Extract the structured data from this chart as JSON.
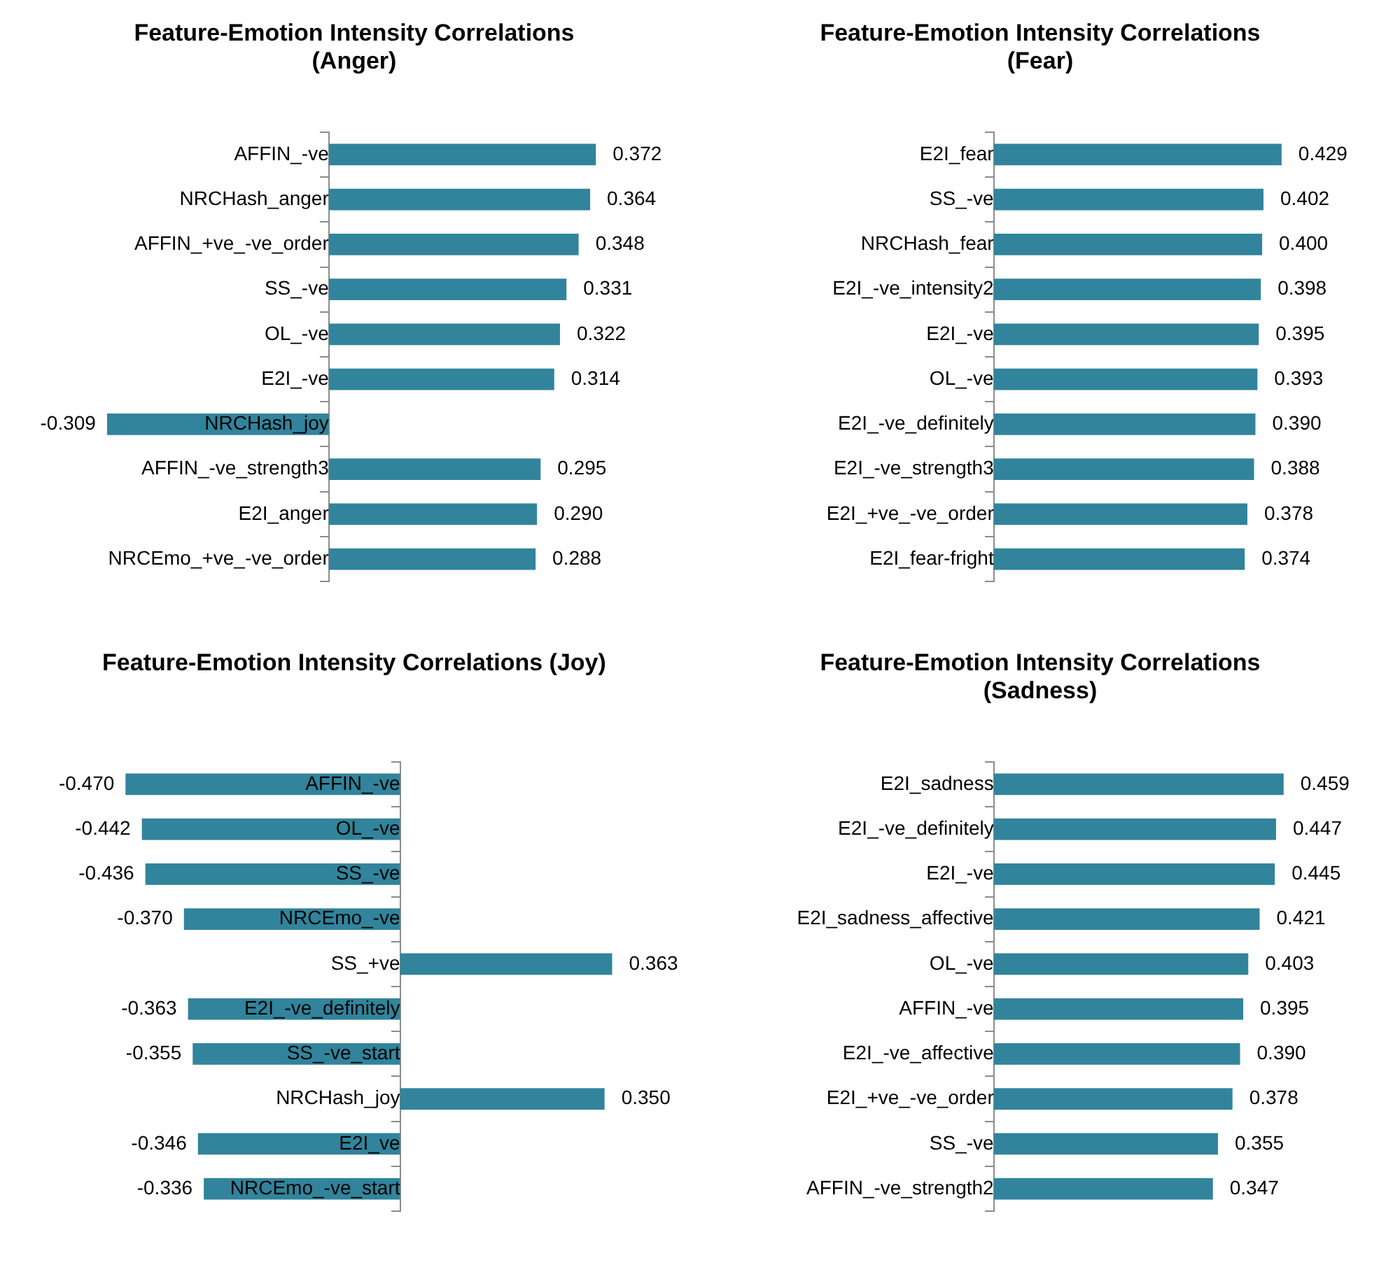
{
  "chart_data": [
    {
      "type": "bar",
      "orientation": "horizontal",
      "tick_labels": "y",
      "title": "Feature-Emotion Intensity Correlations\n(Anger)",
      "color": "#31849b",
      "categories": [
        "AFFIN_-ve",
        "NRCHash_anger",
        "AFFIN_+ve_-ve_order",
        "SS_-ve",
        "OL_-ve",
        "E2I_-ve",
        "NRCHash_joy",
        "AFFIN_-ve_strength3",
        "E2I_anger",
        "NRCEmo_+ve_-ve_order"
      ],
      "values": [
        0.372,
        0.364,
        0.348,
        0.331,
        0.322,
        0.314,
        -0.309,
        0.295,
        0.29,
        0.288
      ],
      "value_labels": [
        "0.372",
        "0.364",
        "0.348",
        "0.331",
        "0.322",
        "0.314",
        "-0.309",
        "0.295",
        "0.290",
        "0.288"
      ]
    },
    {
      "type": "bar",
      "orientation": "horizontal",
      "tick_labels": "y",
      "title": "Feature-Emotion Intensity Correlations\n(Fear)",
      "color": "#31849b",
      "categories": [
        "E2I_fear",
        "SS_-ve",
        "NRCHash_fear",
        "E2I_-ve_intensity2",
        "E2I_-ve",
        "OL_-ve",
        "E2I_-ve_definitely",
        "E2I_-ve_strength3",
        "E2I_+ve_-ve_order",
        "E2I_fear-fright"
      ],
      "values": [
        0.429,
        0.402,
        0.4,
        0.398,
        0.395,
        0.393,
        0.39,
        0.388,
        0.378,
        0.374
      ],
      "value_labels": [
        "0.429",
        "0.402",
        "0.400",
        "0.398",
        "0.395",
        "0.393",
        "0.390",
        "0.388",
        "0.378",
        "0.374"
      ]
    },
    {
      "type": "bar",
      "orientation": "horizontal",
      "tick_labels": "y",
      "title": "Feature-Emotion Intensity Correlations (Joy)",
      "color": "#31849b",
      "categories": [
        "AFFIN_-ve",
        "OL_-ve",
        "SS_-ve",
        "NRCEmo_-ve",
        "SS_+ve",
        "E2I_-ve_definitely",
        "SS_-ve_start",
        "NRCHash_joy",
        "E2I_ve",
        "NRCEmo_-ve_start"
      ],
      "values": [
        -0.47,
        -0.442,
        -0.436,
        -0.37,
        0.363,
        -0.363,
        -0.355,
        0.35,
        -0.346,
        -0.336
      ],
      "value_labels": [
        "-0.470",
        "-0.442",
        "-0.436",
        "-0.370",
        "0.363",
        "-0.363",
        "-0.355",
        "0.350",
        "-0.346",
        "-0.336"
      ]
    },
    {
      "type": "bar",
      "orientation": "horizontal",
      "tick_labels": "y",
      "title": "Feature-Emotion Intensity Correlations\n(Sadness)",
      "color": "#31849b",
      "categories": [
        "E2I_sadness",
        "E2I_-ve_definitely",
        "E2I_-ve",
        "E2I_sadness_affective",
        "OL_-ve",
        "AFFIN_-ve",
        "E2I_-ve_affective",
        "E2I_+ve_-ve_order",
        "SS_-ve",
        "AFFIN_-ve_strength2"
      ],
      "values": [
        0.459,
        0.447,
        0.445,
        0.421,
        0.403,
        0.395,
        0.39,
        0.378,
        0.355,
        0.347
      ],
      "value_labels": [
        "0.459",
        "0.447",
        "0.445",
        "0.421",
        "0.403",
        "0.395",
        "0.390",
        "0.378",
        "0.355",
        "0.347"
      ]
    }
  ]
}
